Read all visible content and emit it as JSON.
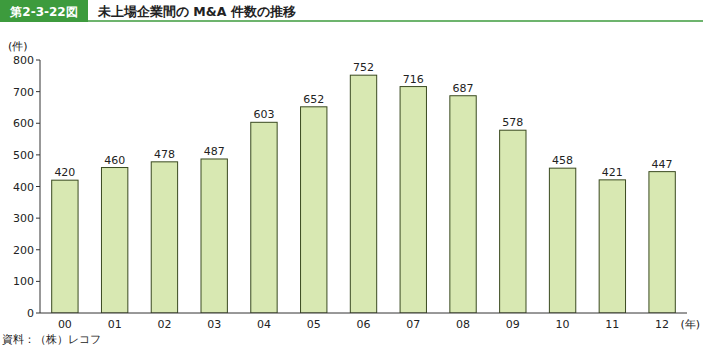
{
  "chart_data": {
    "type": "bar",
    "title": "未上場企業間の M&A 件数の推移",
    "annotations": [
      "第2-3-22図",
      "資料：（株）レコフ"
    ],
    "y_label": "(件)",
    "x_label": "(年)",
    "categories": [
      "00",
      "01",
      "02",
      "03",
      "04",
      "05",
      "06",
      "07",
      "08",
      "09",
      "10",
      "11",
      "12"
    ],
    "values": [
      420,
      460,
      478,
      487,
      603,
      652,
      752,
      716,
      687,
      578,
      458,
      421,
      447
    ],
    "color": "#d8e8b2",
    "ylim": [
      0,
      800
    ],
    "yticks": [
      0,
      100,
      200,
      300,
      400,
      500,
      600,
      700,
      800
    ],
    "grid": false,
    "data_labels": true
  }
}
